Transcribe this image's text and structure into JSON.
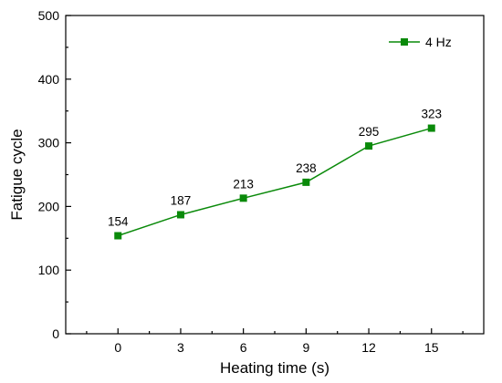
{
  "chart_data": {
    "type": "line",
    "title": "",
    "xlabel": "Heating time (s)",
    "ylabel": "Fatigue cycle",
    "x": [
      0,
      3,
      6,
      9,
      12,
      15
    ],
    "xlim": [
      -2.5,
      17.5
    ],
    "ylim": [
      0,
      500
    ],
    "xticks": [
      0,
      3,
      6,
      9,
      12,
      15
    ],
    "yticks": [
      0,
      100,
      200,
      300,
      400,
      500
    ],
    "grid": false,
    "legend_position": "top-right",
    "series": [
      {
        "name": "4 Hz",
        "color": "#0a8a0a",
        "marker": "square",
        "values": [
          154,
          187,
          213,
          238,
          295,
          323
        ],
        "data_labels": [
          "154",
          "187",
          "213",
          "238",
          "295",
          "323"
        ]
      }
    ]
  }
}
